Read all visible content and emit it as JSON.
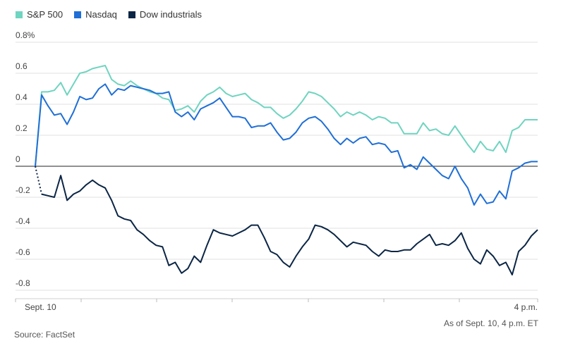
{
  "chart_data": {
    "type": "line",
    "y_axis": {
      "unit_label": "0.8%",
      "ticks": [
        "0.8%",
        "0.6",
        "0.4",
        "0.2",
        "0",
        "-0.2",
        "-0.4",
        "-0.6",
        "-0.8"
      ],
      "tick_values": [
        0.8,
        0.6,
        0.4,
        0.2,
        0,
        -0.2,
        -0.4,
        -0.6,
        -0.8
      ],
      "ylim": [
        -0.8,
        0.8
      ]
    },
    "x_axis": {
      "start_label": "Sept. 10",
      "end_label": "4 p.m."
    },
    "grid": "horizontal",
    "legend_position": "top-left",
    "series": [
      {
        "name": "S&P 500",
        "color": "#6fd4c0",
        "values": [
          0.0,
          0.48,
          0.48,
          0.49,
          0.54,
          0.46,
          0.53,
          0.6,
          0.61,
          0.63,
          0.64,
          0.65,
          0.56,
          0.53,
          0.52,
          0.55,
          0.52,
          0.5,
          0.48,
          0.47,
          0.44,
          0.43,
          0.36,
          0.37,
          0.39,
          0.35,
          0.42,
          0.46,
          0.48,
          0.51,
          0.47,
          0.45,
          0.46,
          0.47,
          0.43,
          0.41,
          0.38,
          0.38,
          0.34,
          0.31,
          0.33,
          0.37,
          0.42,
          0.48,
          0.47,
          0.45,
          0.41,
          0.37,
          0.32,
          0.35,
          0.33,
          0.35,
          0.33,
          0.3,
          0.32,
          0.31,
          0.28,
          0.28,
          0.21,
          0.21,
          0.21,
          0.28,
          0.23,
          0.24,
          0.21,
          0.2,
          0.26,
          0.2,
          0.14,
          0.09,
          0.16,
          0.11,
          0.1,
          0.16,
          0.09,
          0.23,
          0.25,
          0.3,
          0.3,
          0.3
        ]
      },
      {
        "name": "Nasdaq",
        "color": "#1f6fd6",
        "values": [
          0.0,
          0.46,
          0.39,
          0.33,
          0.34,
          0.27,
          0.35,
          0.45,
          0.43,
          0.44,
          0.5,
          0.53,
          0.46,
          0.5,
          0.49,
          0.52,
          0.51,
          0.5,
          0.49,
          0.47,
          0.47,
          0.48,
          0.35,
          0.32,
          0.35,
          0.3,
          0.37,
          0.39,
          0.41,
          0.44,
          0.38,
          0.32,
          0.32,
          0.31,
          0.25,
          0.26,
          0.26,
          0.28,
          0.22,
          0.17,
          0.18,
          0.22,
          0.28,
          0.31,
          0.32,
          0.29,
          0.24,
          0.18,
          0.14,
          0.18,
          0.15,
          0.18,
          0.19,
          0.14,
          0.15,
          0.14,
          0.09,
          0.1,
          -0.01,
          0.01,
          -0.02,
          0.06,
          0.02,
          -0.02,
          -0.06,
          -0.08,
          0.0,
          -0.08,
          -0.14,
          -0.25,
          -0.18,
          -0.24,
          -0.23,
          -0.16,
          -0.21,
          -0.03,
          -0.01,
          0.02,
          0.03,
          0.03
        ]
      },
      {
        "name": "Dow industrials",
        "color": "#0b2545",
        "values": [
          0.0,
          -0.18,
          -0.19,
          -0.2,
          -0.06,
          -0.22,
          -0.18,
          -0.16,
          -0.12,
          -0.09,
          -0.12,
          -0.14,
          -0.22,
          -0.32,
          -0.34,
          -0.35,
          -0.41,
          -0.44,
          -0.48,
          -0.51,
          -0.52,
          -0.64,
          -0.62,
          -0.69,
          -0.66,
          -0.58,
          -0.62,
          -0.51,
          -0.41,
          -0.43,
          -0.44,
          -0.45,
          -0.43,
          -0.41,
          -0.38,
          -0.38,
          -0.46,
          -0.55,
          -0.57,
          -0.62,
          -0.65,
          -0.58,
          -0.52,
          -0.47,
          -0.38,
          -0.39,
          -0.41,
          -0.44,
          -0.48,
          -0.52,
          -0.49,
          -0.5,
          -0.51,
          -0.55,
          -0.58,
          -0.54,
          -0.55,
          -0.55,
          -0.54,
          -0.54,
          -0.5,
          -0.47,
          -0.44,
          -0.51,
          -0.5,
          -0.51,
          -0.48,
          -0.43,
          -0.53,
          -0.6,
          -0.63,
          -0.54,
          -0.58,
          -0.64,
          -0.62,
          -0.7,
          -0.55,
          -0.51,
          -0.45,
          -0.41
        ]
      }
    ]
  },
  "legend": {
    "items": [
      {
        "label": "S&P 500",
        "color": "#6fd4c0"
      },
      {
        "label": "Nasdaq",
        "color": "#1f6fd6"
      },
      {
        "label": "Dow industrials",
        "color": "#0b2545"
      }
    ]
  },
  "footer": {
    "note": "As of Sept. 10, 4 p.m. ET",
    "source": "Source: FactSet"
  }
}
